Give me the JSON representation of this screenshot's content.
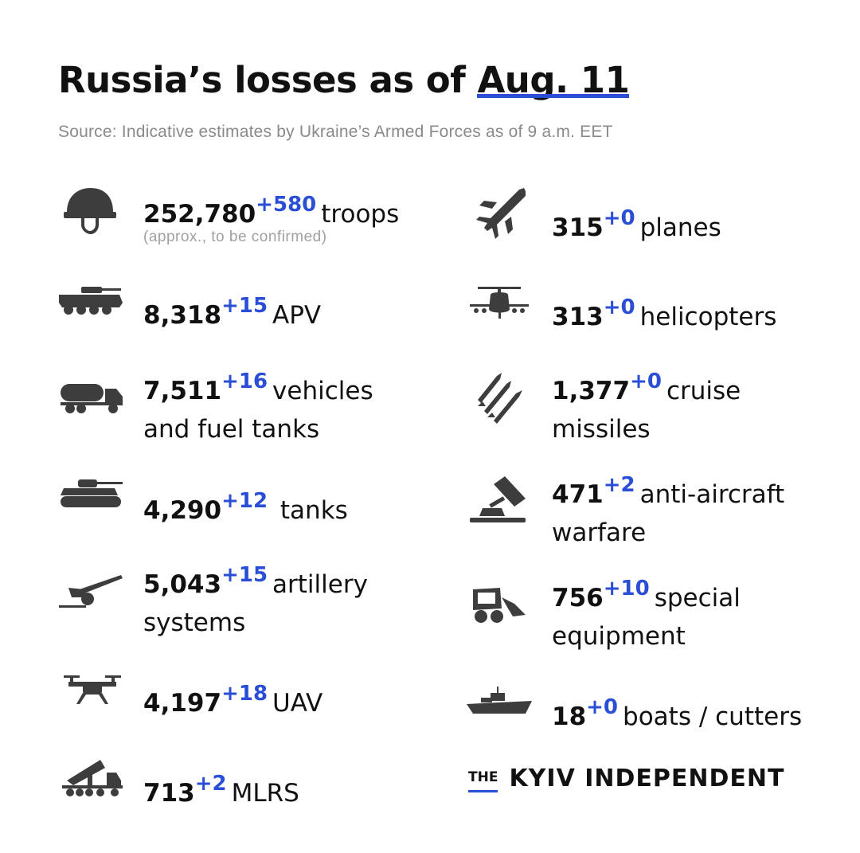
{
  "header": {
    "title_main": "Russia’s losses",
    "title_asof": "as of",
    "title_date": "Aug. 11",
    "source": "Source: Indicative estimates by Ukraine’s Armed Forces as of 9 a.m. EET",
    "accent_color": "#2A4FD6"
  },
  "left_items": [
    {
      "icon": "helmet-icon",
      "value": "252,780",
      "delta": "+580",
      "label": "troops",
      "note": "(approx., to be confirmed)"
    },
    {
      "icon": "apv-icon",
      "value": "8,318",
      "delta": "+15",
      "label": "APV"
    },
    {
      "icon": "fuel-truck-icon",
      "value": "7,511",
      "delta": "+16",
      "label": "vehicles",
      "label2": "and fuel tanks"
    },
    {
      "icon": "tank-icon",
      "value": "4,290",
      "delta": "+12",
      "label": "tanks"
    },
    {
      "icon": "artillery-icon",
      "value": "5,043",
      "delta": "+15",
      "label": "artillery",
      "label2": "systems"
    },
    {
      "icon": "drone-icon",
      "value": "4,197",
      "delta": "+18",
      "label": "UAV"
    },
    {
      "icon": "mlrs-icon",
      "value": "713",
      "delta": "+2",
      "label": "MLRS"
    }
  ],
  "right_items": [
    {
      "icon": "jet-icon",
      "value": "315",
      "delta": "+0",
      "label": "planes"
    },
    {
      "icon": "helicopter-icon",
      "value": "313",
      "delta": "+0",
      "label": "helicopters"
    },
    {
      "icon": "missiles-icon",
      "value": "1,377",
      "delta": "+0",
      "label": "cruise",
      "label2": "missiles"
    },
    {
      "icon": "anti-aircraft-icon",
      "value": "471",
      "delta": "+2",
      "label": "anti-aircraft",
      "label2": "warfare"
    },
    {
      "icon": "loader-icon",
      "value": "756",
      "delta": "+10",
      "label": "special",
      "label2": "equipment"
    },
    {
      "icon": "boat-icon",
      "value": "18",
      "delta": "+0",
      "label": "boats / cutters"
    }
  ],
  "logo": {
    "the": "THE",
    "name": "KYIV INDEPENDENT"
  }
}
